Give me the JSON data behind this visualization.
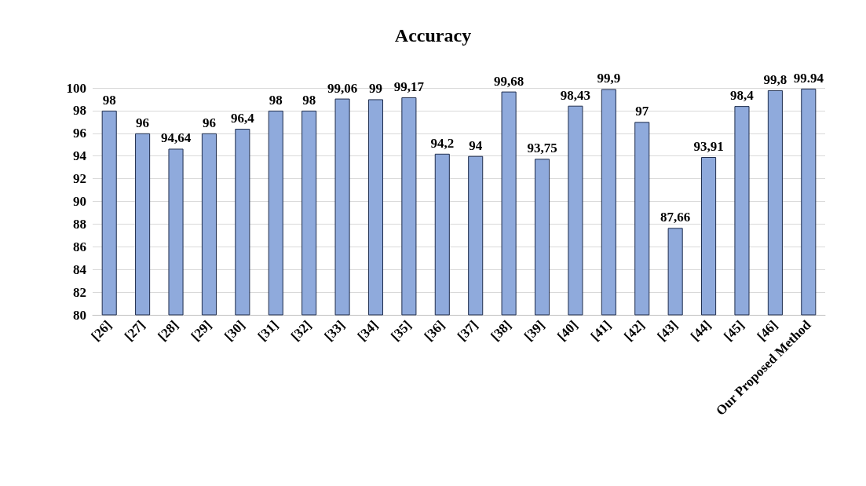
{
  "chart_data": {
    "type": "bar",
    "title": "Accuracy",
    "categories": [
      "[26]",
      "[27]",
      "[28]",
      "[29]",
      "[30]",
      "[31]",
      "[32]",
      "[33]",
      "[34]",
      "[35]",
      "[36]",
      "[37]",
      "[38]",
      "[39]",
      "[40]",
      "[41]",
      "[42]",
      "[43]",
      "[44]",
      "[45]",
      "[46]",
      "Our Proposed Method"
    ],
    "values": [
      98,
      96,
      94.64,
      96,
      96.4,
      98,
      98,
      99.06,
      99,
      99.17,
      94.2,
      94,
      99.68,
      93.75,
      98.43,
      99.9,
      97,
      87.66,
      93.91,
      98.4,
      99.8,
      99.94
    ],
    "value_labels": [
      "98",
      "96",
      "94,64",
      "96",
      "96,4",
      "98",
      "98",
      "99,06",
      "99",
      "99,17",
      "94,2",
      "94",
      "99,68",
      "93,75",
      "98,43",
      "99,9",
      "97",
      "87,66",
      "93,91",
      "98,4",
      "99,8",
      "99.94"
    ],
    "color": "#8faadc",
    "ylim": [
      80,
      100
    ],
    "yticks": [
      80,
      82,
      84,
      86,
      88,
      90,
      92,
      94,
      96,
      98,
      100
    ],
    "grid": "y"
  }
}
